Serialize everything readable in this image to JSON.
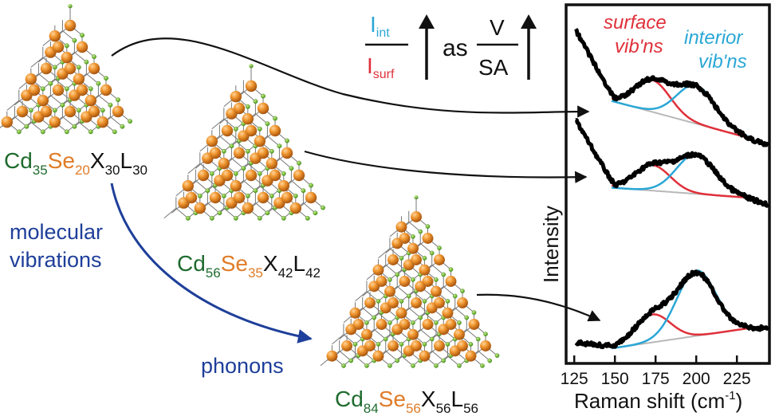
{
  "formulas": [
    {
      "id": "cd35",
      "parts": [
        {
          "text": "Cd",
          "sub": "35",
          "color": "#1f6b2e"
        },
        {
          "text": "Se",
          "sub": "20",
          "color": "#e07c28"
        },
        {
          "text": "X",
          "sub": "30",
          "color": "#111111"
        },
        {
          "text": "L",
          "sub": "30",
          "color": "#111111"
        }
      ]
    },
    {
      "id": "cd56",
      "parts": [
        {
          "text": "Cd",
          "sub": "56",
          "color": "#1f6b2e"
        },
        {
          "text": "Se",
          "sub": "35",
          "color": "#e07c28"
        },
        {
          "text": "X",
          "sub": "42",
          "color": "#111111"
        },
        {
          "text": "L",
          "sub": "42",
          "color": "#111111"
        }
      ]
    },
    {
      "id": "cd84",
      "parts": [
        {
          "text": "Cd",
          "sub": "84",
          "color": "#1f6b2e"
        },
        {
          "text": "Se",
          "sub": "56",
          "color": "#e07c28"
        },
        {
          "text": "X",
          "sub": "56",
          "color": "#111111"
        },
        {
          "text": "L",
          "sub": "56",
          "color": "#111111"
        }
      ]
    }
  ],
  "ratio": {
    "num_main": "I",
    "num_sub": "int",
    "den_main": "I",
    "den_sub": "surf",
    "as": "as",
    "v": "V",
    "sa": "SA"
  },
  "left_labels": {
    "molecular": "molecular",
    "vibrations": "vibrations",
    "phonons": "phonons"
  },
  "plot": {
    "surface_line1": "surface",
    "surface_line2": "vib'ns",
    "interior_line1": "interior",
    "interior_line2": "vib'ns",
    "ylabel": "Intensity",
    "xlabel": "Raman shift (cm",
    "xlabel_sup": "-1",
    "xlabel_end": ")",
    "xticks": [
      "125",
      "150",
      "175",
      "200",
      "225"
    ],
    "xlim": [
      120,
      245
    ]
  },
  "colors": {
    "cd": "#1f6b2e",
    "se": "#e07c28",
    "surface": "#e0303a",
    "interior": "#2aa7d6",
    "arrow_blue": "#1e3f9a",
    "data": "#000000",
    "baseline": "#b8b8b8"
  }
}
